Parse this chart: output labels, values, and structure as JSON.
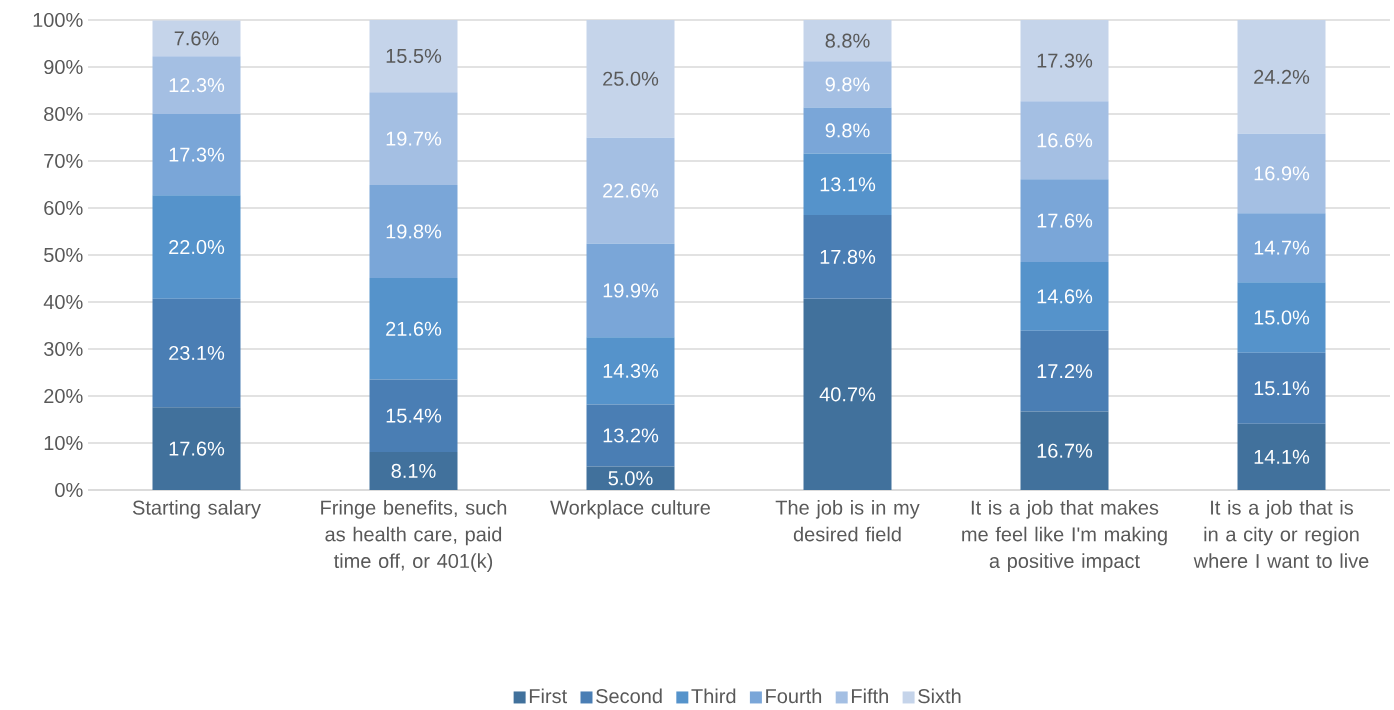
{
  "chart_data": {
    "type": "bar",
    "stacked": true,
    "categories": [
      "Starting salary",
      "Fringe benefits, such as health care, paid time off, or 401(k)",
      "Workplace culture",
      "The job is in my desired field",
      "It is a job that makes me feel like I'm making a positive impact",
      "It is a job that is in a city or region where I want to live"
    ],
    "series": [
      {
        "name": "First",
        "color": "#41719c",
        "values": [
          17.6,
          8.1,
          5.0,
          40.7,
          16.7,
          14.1
        ],
        "value_labels": [
          "17.6%",
          "8.1%",
          "5.0%",
          "40.7%",
          "16.7%",
          "14.1%"
        ]
      },
      {
        "name": "Second",
        "color": "#4a7eb4",
        "values": [
          23.1,
          15.4,
          13.2,
          17.8,
          17.2,
          15.1
        ],
        "value_labels": [
          "23.1%",
          "15.4%",
          "13.2%",
          "17.8%",
          "17.2%",
          "15.1%"
        ]
      },
      {
        "name": "Third",
        "color": "#5593cb",
        "values": [
          22.0,
          21.6,
          14.3,
          13.1,
          14.6,
          15.0
        ],
        "value_labels": [
          "22.0%",
          "21.6%",
          "14.3%",
          "13.1%",
          "14.6%",
          "15.0%"
        ]
      },
      {
        "name": "Fourth",
        "color": "#7aa6d8",
        "values": [
          17.3,
          19.8,
          19.9,
          9.8,
          17.6,
          14.7
        ],
        "value_labels": [
          "17.3%",
          "19.8%",
          "19.9%",
          "9.8%",
          "17.6%",
          "14.7%"
        ]
      },
      {
        "name": "Fifth",
        "color": "#a4bfe3",
        "values": [
          12.3,
          19.7,
          22.6,
          9.8,
          16.6,
          16.9
        ],
        "value_labels": [
          "12.3%",
          "19.7%",
          "22.6%",
          "9.8%",
          "16.6%",
          "16.9%"
        ]
      },
      {
        "name": "Sixth",
        "color": "#c5d4ea",
        "values": [
          7.6,
          15.5,
          25.0,
          8.8,
          17.3,
          24.2
        ],
        "value_labels": [
          "7.6%",
          "15.5%",
          "25.0%",
          "8.8%",
          "17.3%",
          "24.2%"
        ]
      }
    ],
    "ylim": [
      0,
      100
    ],
    "yticks": [
      {
        "value": 0,
        "label": "0%"
      },
      {
        "value": 10,
        "label": "10%"
      },
      {
        "value": 20,
        "label": "20%"
      },
      {
        "value": 30,
        "label": "30%"
      },
      {
        "value": 40,
        "label": "40%"
      },
      {
        "value": 50,
        "label": "50%"
      },
      {
        "value": 60,
        "label": "60%"
      },
      {
        "value": 70,
        "label": "70%"
      },
      {
        "value": 80,
        "label": "80%"
      },
      {
        "value": 90,
        "label": "90%"
      },
      {
        "value": 100,
        "label": "100%"
      }
    ],
    "grid": "y",
    "legend": "bottom"
  }
}
